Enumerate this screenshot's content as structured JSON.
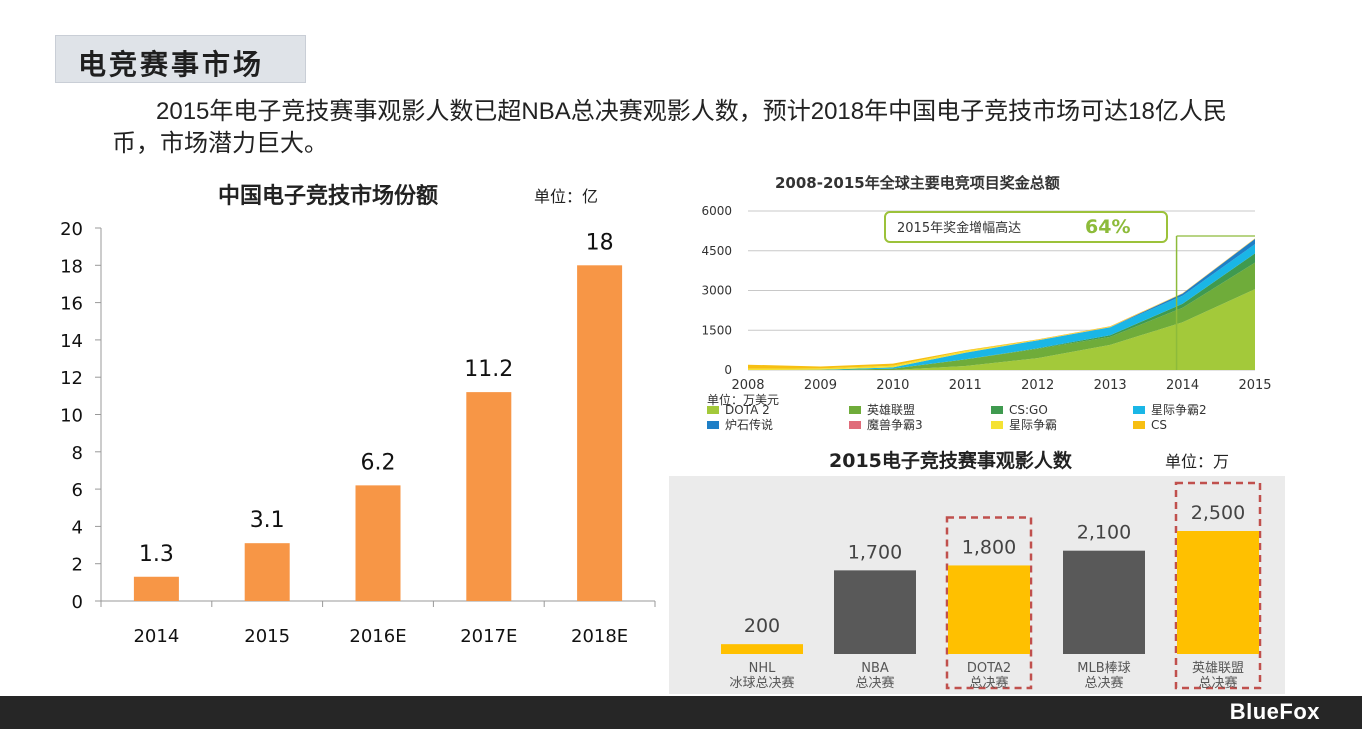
{
  "page": {
    "section_title": "电竞赛事市场",
    "intro": "2015年电子竞技赛事观影人数已超NBA总决赛观影人数，预计2018年中国电子竞技市场可达18亿人民币，市场潜力巨大。",
    "logo": "BlueFox"
  },
  "chart_data": [
    {
      "type": "bar",
      "title": "中国电子竞技市场份额",
      "unit_label": "单位：亿",
      "categories": [
        "2014",
        "2015",
        "2016E",
        "2017E",
        "2018E"
      ],
      "values": [
        1.3,
        3.1,
        6.2,
        11.2,
        18
      ],
      "value_labels": [
        "1.3",
        "3.1",
        "6.2",
        "11.2",
        "18"
      ],
      "yticks": [
        "0",
        "2",
        "4",
        "6",
        "8",
        "10",
        "12",
        "14",
        "16",
        "18",
        "20"
      ],
      "ylim": [
        0,
        20
      ],
      "bar_color": "#f79646"
    },
    {
      "type": "area",
      "title": "2008-2015年全球主要电竞项目奖金总额",
      "unit_label": "单位：万美元",
      "annotation_text": "2015年奖金增幅高达",
      "annotation_value": "64%",
      "x": [
        "2008",
        "2009",
        "2010",
        "2011",
        "2012",
        "2013",
        "2014",
        "2015"
      ],
      "yticks": [
        "0",
        "1500",
        "3000",
        "4500",
        "6000"
      ],
      "ylim": [
        0,
        6000
      ],
      "series": [
        {
          "name": "DOTA 2",
          "color": "#a3c93a",
          "values": [
            0,
            0,
            0,
            150,
            450,
            950,
            1800,
            3050
          ]
        },
        {
          "name": "英雄联盟",
          "color": "#6fac3a",
          "values": [
            0,
            0,
            50,
            250,
            350,
            300,
            550,
            1000
          ]
        },
        {
          "name": "CS:GO",
          "color": "#3f9a4f",
          "values": [
            0,
            0,
            0,
            0,
            20,
            60,
            150,
            350
          ]
        },
        {
          "name": "星际争霸2",
          "color": "#1ab6e6",
          "values": [
            0,
            10,
            50,
            250,
            300,
            300,
            300,
            350
          ]
        },
        {
          "name": "炉石传说",
          "color": "#1f7fc6",
          "values": [
            0,
            0,
            0,
            0,
            0,
            5,
            80,
            200
          ]
        },
        {
          "name": "魔兽争霸3",
          "color": "#e06c7a",
          "values": [
            0,
            0,
            0,
            5,
            5,
            5,
            5,
            5
          ]
        },
        {
          "name": "星际争霸",
          "color": "#f5e234",
          "values": [
            50,
            50,
            60,
            60,
            10,
            10,
            5,
            5
          ]
        },
        {
          "name": "CS",
          "color": "#f7bf12",
          "values": [
            150,
            70,
            80,
            30,
            20,
            20,
            10,
            10
          ]
        }
      ]
    },
    {
      "type": "bar",
      "title": "2015电子竞技赛事观影人数",
      "unit_label": "单位：万",
      "categories": [
        [
          "NHL",
          "冰球总决赛"
        ],
        [
          "NBA",
          "总决赛"
        ],
        [
          "DOTA2",
          "总决赛"
        ],
        [
          "MLB棒球",
          "总决赛"
        ],
        [
          "英雄联盟",
          "总决赛"
        ]
      ],
      "values": [
        200,
        1700,
        1800,
        2100,
        2500
      ],
      "value_labels": [
        "200",
        "1,700",
        "1,800",
        "2,100",
        "2,500"
      ],
      "colors": [
        "#ffc000",
        "#595959",
        "#ffc000",
        "#595959",
        "#ffc000"
      ],
      "highlighted": [
        false,
        false,
        true,
        false,
        true
      ],
      "highlight_color": "#c0504d"
    }
  ]
}
